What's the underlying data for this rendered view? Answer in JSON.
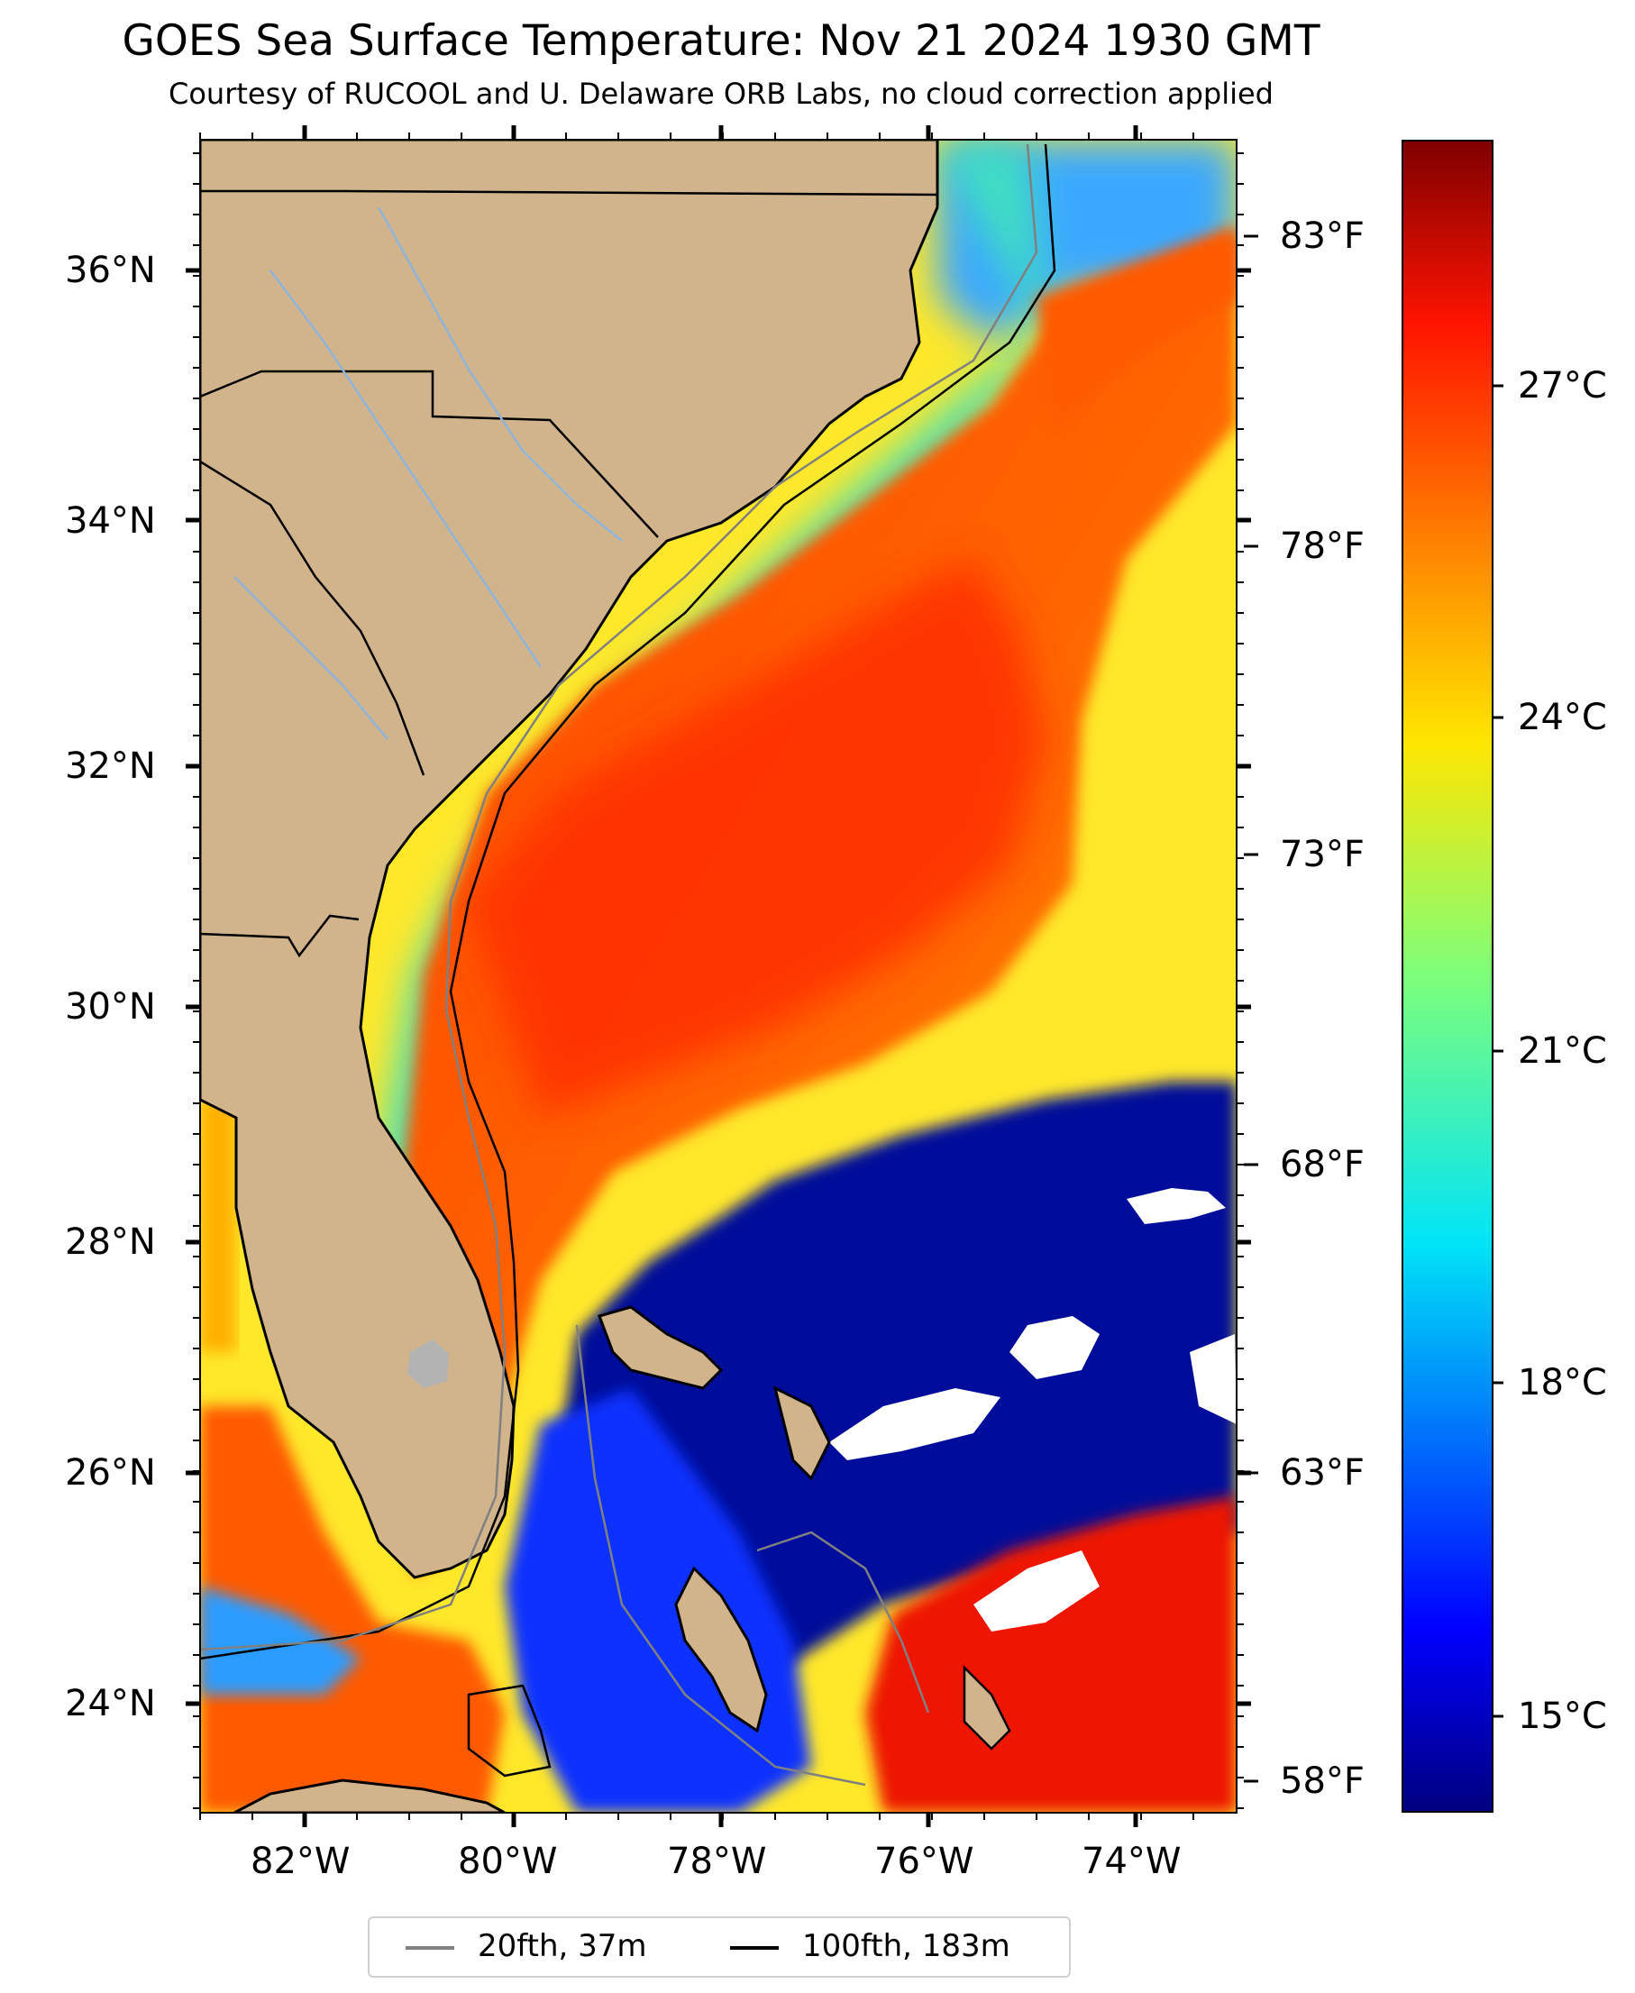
{
  "title": "GOES Sea Surface Temperature: Nov 21 2024 1930 GMT",
  "subtitle": "Courtesy of RUCOOL and U. Delaware ORB Labs, no cloud correction applied",
  "map": {
    "lon_range": [
      -83,
      -73
    ],
    "lat_range": [
      23.1,
      37.1
    ],
    "lat_ticks": [
      "36°N",
      "34°N",
      "32°N",
      "30°N",
      "28°N",
      "26°N",
      "24°N"
    ],
    "lon_ticks": [
      "82°W",
      "80°W",
      "78°W",
      "76°W",
      "74°W"
    ],
    "fahrenheit_ticks": [
      "83°F",
      "78°F",
      "73°F",
      "68°F",
      "63°F",
      "58°F"
    ],
    "land_color": "#d2b48c",
    "cloud_color": "#ffffff"
  },
  "colorbar": {
    "colormap": "jet",
    "range_c": [
      13.5,
      29.5
    ],
    "ticks_c": [
      "27°C",
      "24°C",
      "21°C",
      "18°C",
      "15°C"
    ]
  },
  "legend": {
    "entries": [
      {
        "label": "20fth, 37m",
        "color": "#808080"
      },
      {
        "label": "100fth, 183m",
        "color": "#000000"
      }
    ]
  }
}
